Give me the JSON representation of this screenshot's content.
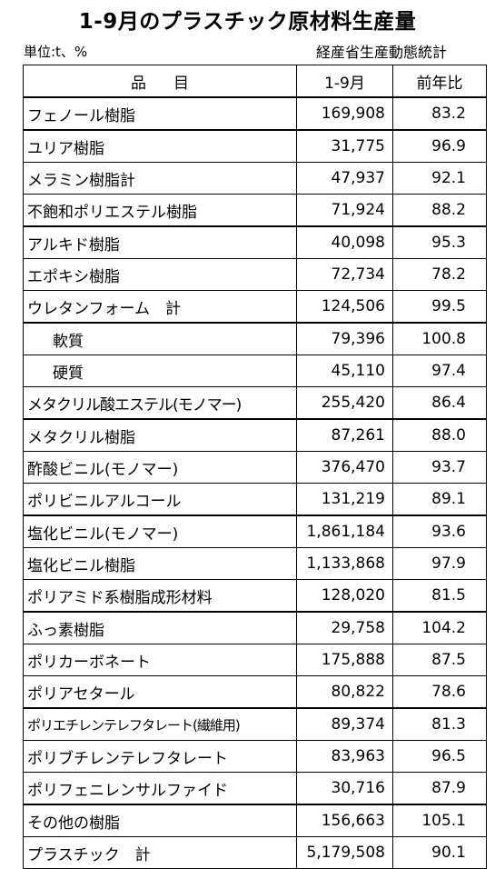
{
  "title": "1-9月のプラスチック原材料生産量",
  "unit": "単位:t、%",
  "source": "経産省生産動態統計",
  "table": {
    "headers": {
      "item_a": "品",
      "item_b": "目",
      "period": "1-9月",
      "yoy": "前年比"
    },
    "rows": [
      {
        "name": "フェノール樹脂",
        "value": "169,908",
        "yoy": "83.2"
      },
      {
        "name": "ユリア樹脂",
        "value": "31,775",
        "yoy": "96.9"
      },
      {
        "name": "メラミン樹脂計",
        "value": "47,937",
        "yoy": "92.1"
      },
      {
        "name": "不飽和ポリエステル樹脂",
        "value": "71,924",
        "yoy": "88.2"
      },
      {
        "name": "アルキド樹脂",
        "value": "40,098",
        "yoy": "95.3"
      },
      {
        "name": "エポキシ樹脂",
        "value": "72,734",
        "yoy": "78.2"
      },
      {
        "name": "ウレタンフォーム　計",
        "value": "124,506",
        "yoy": "99.5"
      },
      {
        "name": "軟質",
        "value": "79,396",
        "yoy": "100.8"
      },
      {
        "name": "硬質",
        "value": "45,110",
        "yoy": "97.4"
      },
      {
        "name": "メタクリル酸エステル(モノマー)",
        "value": "255,420",
        "yoy": "86.4"
      },
      {
        "name": "メタクリル樹脂",
        "value": "87,261",
        "yoy": "88.0"
      },
      {
        "name": "酢酸ビニル(モノマー)",
        "value": "376,470",
        "yoy": "93.7"
      },
      {
        "name": "ポリビニルアルコール",
        "value": "131,219",
        "yoy": "89.1"
      },
      {
        "name": "塩化ビニル(モノマー)",
        "value": "1,861,184",
        "yoy": "93.6"
      },
      {
        "name": "塩化ビニル樹脂",
        "value": "1,133,868",
        "yoy": "97.9"
      },
      {
        "name": "ポリアミド系樹脂成形材料",
        "value": "128,020",
        "yoy": "81.5"
      },
      {
        "name": "ふっ素樹脂",
        "value": "29,758",
        "yoy": "104.2"
      },
      {
        "name": "ポリカーボネート",
        "value": "175,888",
        "yoy": "87.5"
      },
      {
        "name": "ポリアセタール",
        "value": "80,822",
        "yoy": "78.6"
      },
      {
        "name": "ポリエチレンテレフタレート(繊維用)",
        "value": "89,374",
        "yoy": "81.3"
      },
      {
        "name": "ポリブチレンテレフタレート",
        "value": "83,963",
        "yoy": "96.5"
      },
      {
        "name": "ポリフェニレンサルファイド",
        "value": "30,716",
        "yoy": "87.9"
      },
      {
        "name": "その他の樹脂",
        "value": "156,663",
        "yoy": "105.1"
      },
      {
        "name": "プラスチック　計",
        "value": "5,179,508",
        "yoy": "90.1"
      }
    ]
  }
}
